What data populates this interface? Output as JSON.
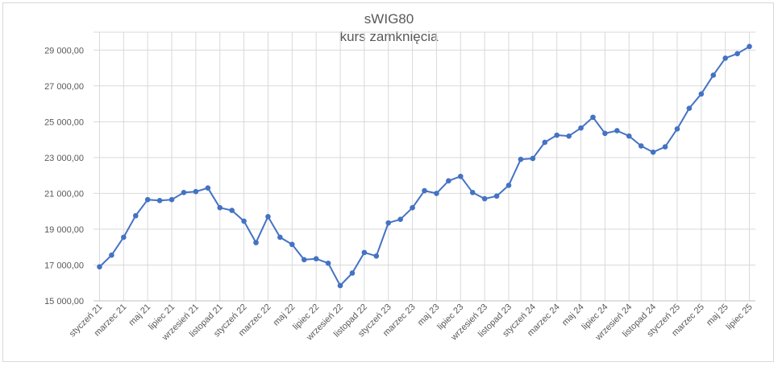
{
  "chart_data": {
    "type": "line",
    "title": "sWIG80",
    "subtitle": "kurs zamknięcia",
    "xlabel": "",
    "ylabel": "",
    "ylim": [
      15000,
      30000
    ],
    "y_ticks": [
      "15 000,00",
      "17 000,00",
      "19 000,00",
      "21 000,00",
      "23 000,00",
      "25 000,00",
      "27 000,00",
      "29 000,00"
    ],
    "x_tick_labels": [
      "styczeń 21",
      "marzec 21",
      "maj 21",
      "lipiec 21",
      "wrzesień 21",
      "listopad 21",
      "styczeń 22",
      "marzec 22",
      "maj 22",
      "lipiec 22",
      "wrzesień 22",
      "listopad 22",
      "styczeń 23",
      "marzec 23",
      "maj 23",
      "lipiec 23",
      "wrzesień 23",
      "listopad 23",
      "styczeń 24",
      "marzec 24",
      "maj 24",
      "lipiec 24",
      "wrzesień 24",
      "listopad 24",
      "styczeń 25",
      "marzec 25",
      "maj 25",
      "lipiec 25"
    ],
    "grid": true,
    "legend": "none",
    "series": [
      {
        "color": "#4472c4",
        "values": [
          16900,
          17550,
          18550,
          19750,
          20650,
          20600,
          20650,
          21050,
          21100,
          21300,
          20200,
          20050,
          19450,
          18250,
          19700,
          18550,
          18150,
          17300,
          17350,
          17100,
          15850,
          16550,
          17700,
          17500,
          19350,
          19550,
          20200,
          21150,
          21000,
          21700,
          21950,
          21050,
          20700,
          20850,
          21450,
          22900,
          22950,
          23850,
          24250,
          24200,
          24650,
          25250,
          24350,
          24500,
          24200,
          23650,
          23300,
          23600,
          24600,
          25750,
          26550,
          27600,
          28550,
          28800,
          29200
        ]
      }
    ]
  }
}
